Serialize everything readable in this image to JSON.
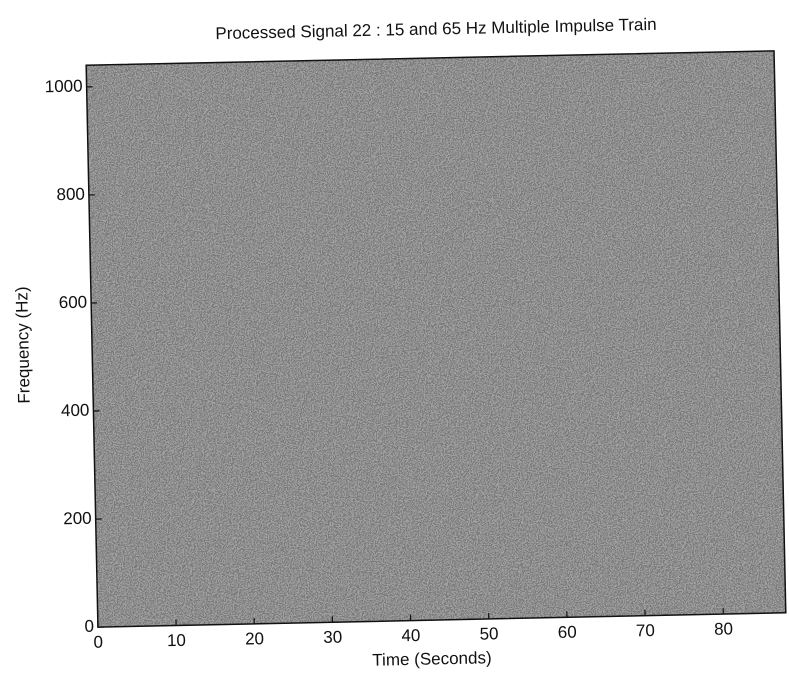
{
  "chart_data": {
    "type": "spectrogram",
    "title": "Processed Signal 22 : 15 and 65 Hz Multiple Impulse Train",
    "x_label": "Time (Seconds)",
    "y_label": "Frequency (Hz)",
    "xlim": [
      0,
      88
    ],
    "xticks": [
      0,
      10,
      20,
      30,
      40,
      50,
      60,
      70,
      80
    ],
    "ylim": [
      0,
      1040
    ],
    "yticks": [
      0,
      200,
      400,
      600,
      800,
      1000
    ]
  }
}
